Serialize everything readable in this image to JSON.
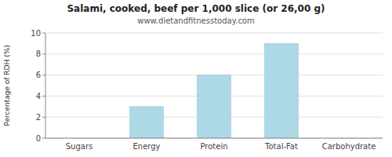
{
  "chart_data": {
    "type": "bar",
    "title": "Salami, cooked, beef per 1,000 slice (or 26,00 g)",
    "subtitle": "www.dietandfitnesstoday.com",
    "ylabel": "Percentage of RDH (%)",
    "categories": [
      "Sugars",
      "Energy",
      "Protein",
      "Total-Fat",
      "Carbohydrate"
    ],
    "values": [
      0,
      3,
      6,
      9,
      0
    ],
    "color": "#add8e6",
    "ylim": [
      0,
      10
    ],
    "yticks": [
      0,
      2,
      4,
      6,
      8,
      10
    ],
    "grid": true
  }
}
